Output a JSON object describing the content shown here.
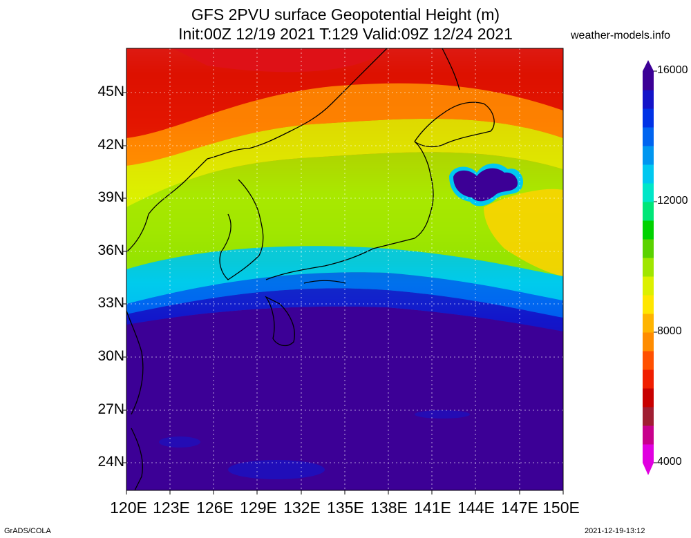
{
  "title": {
    "line1": "GFS 2PVU surface Geopotential Height (m)",
    "line2": "Init:00Z 12/19 2021 T:129 Valid:09Z 12/24 2021"
  },
  "site": "weather-models.info",
  "footer": {
    "left": "GrADS/COLA",
    "right": "2021-12-19-13:12"
  },
  "lat_labels": [
    "45N",
    "42N",
    "39N",
    "36N",
    "33N",
    "30N",
    "27N",
    "24N"
  ],
  "lon_labels": [
    "120E",
    "123E",
    "126E",
    "129E",
    "132E",
    "135E",
    "138E",
    "141E",
    "144E",
    "147E",
    "150E"
  ],
  "colorbar": {
    "labels": [
      "16000",
      "12000",
      "8000",
      "4000"
    ],
    "colors": [
      "#e000e0",
      "#c8008c",
      "#a01e32",
      "#c80000",
      "#f01e00",
      "#ff5000",
      "#ff8c00",
      "#ffb400",
      "#ffe600",
      "#dcf000",
      "#a0e600",
      "#5ad200",
      "#00d200",
      "#00e678",
      "#00e6c8",
      "#00c8f0",
      "#0096f0",
      "#0064f0",
      "#0032e6",
      "#1414c8",
      "#3c0096"
    ]
  },
  "palette": {
    "band_45N": "#f01e00",
    "band_42N": "#ff8c00",
    "band_39N": "#dcf000",
    "band_36N": "#a0e600",
    "band_33N": "#00c8f0",
    "south": "#3c0096",
    "coast": "#000000"
  }
}
